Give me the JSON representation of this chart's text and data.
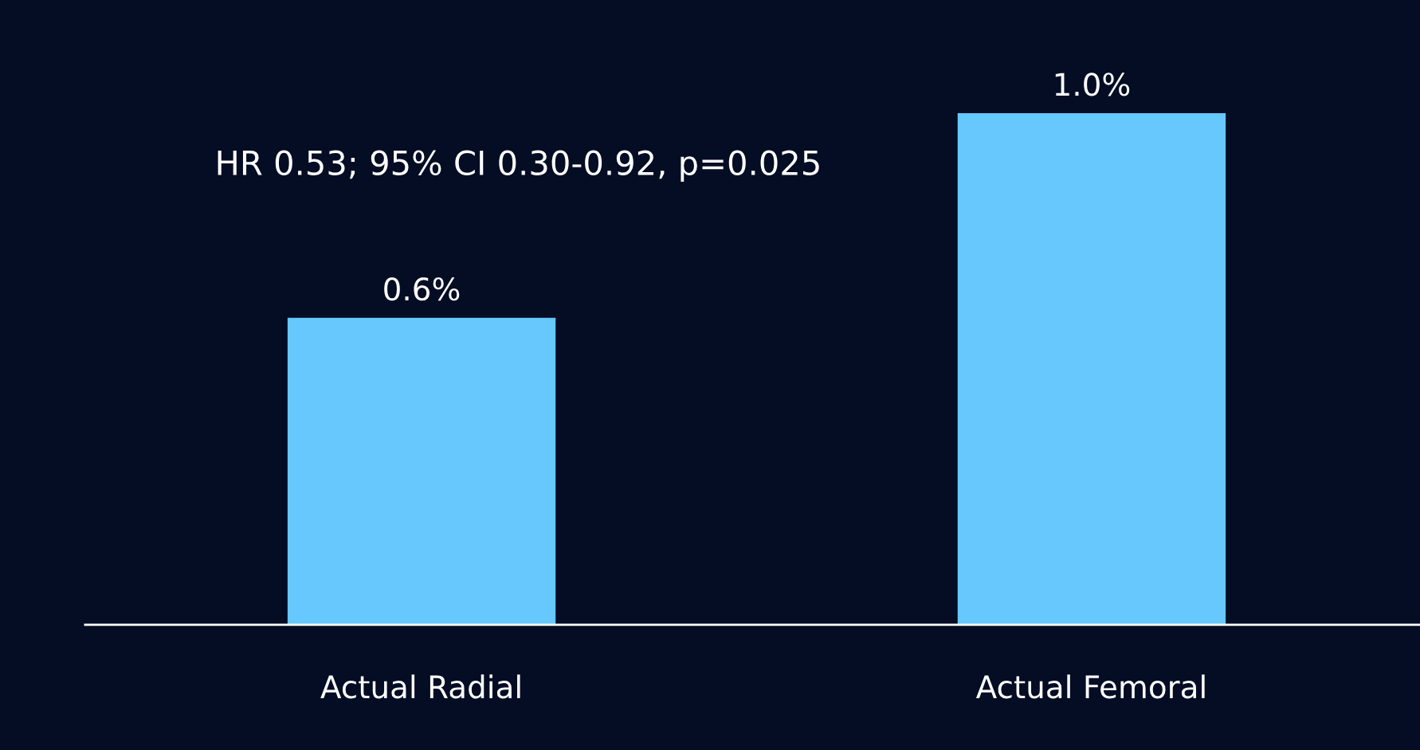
{
  "chart_data": {
    "type": "bar",
    "categories": [
      "Actual Radial",
      "Actual Femoral"
    ],
    "values": [
      0.6,
      1.0
    ],
    "value_labels": [
      "0.6%",
      "1.0%"
    ],
    "color": "#66c8fc",
    "annotations": [
      "HR 0.53; 95% CI 0.30-0.92, p=0.025"
    ],
    "grid": false,
    "legend": false
  }
}
